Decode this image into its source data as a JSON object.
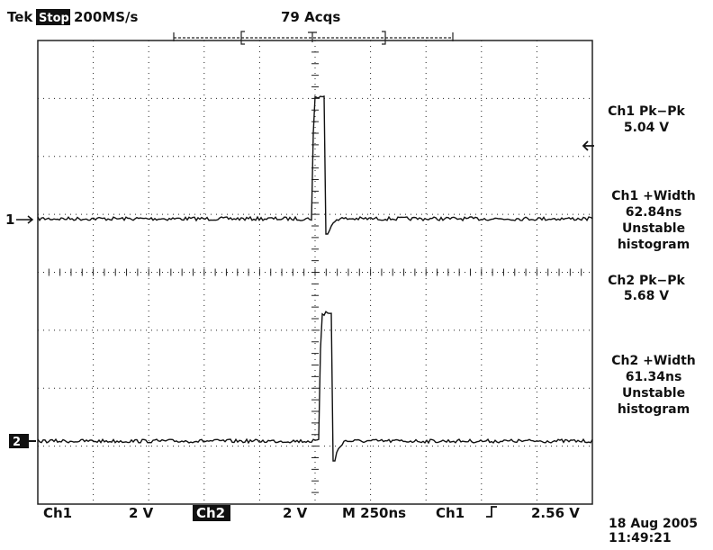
{
  "header": {
    "brand": "Tek",
    "state": "Stop",
    "sample_rate": "200MS/s",
    "acquisitions": "79 Acqs"
  },
  "markers": {
    "ch1": "1",
    "ch2": "2"
  },
  "measurements": [
    {
      "label": "Ch1 Pk−Pk",
      "value": "5.04 V"
    },
    {
      "label": "Ch1 +Width",
      "value": "62.84ns",
      "status": "Unstable",
      "note": "histogram"
    },
    {
      "label": "Ch2 Pk−Pk",
      "value": "5.68 V"
    },
    {
      "label": "Ch2 +Width",
      "value": "61.34ns",
      "status": "Unstable",
      "note": "histogram"
    }
  ],
  "footer": {
    "ch1_label": "Ch1",
    "ch1_scale": "2 V",
    "ch2_label": "Ch2",
    "ch2_scale": "2 V",
    "timebase": "M 250ns",
    "trigger_source": "Ch1",
    "trigger_level": "2.56 V",
    "date": "18 Aug 2005",
    "time": "11:49:21"
  }
}
